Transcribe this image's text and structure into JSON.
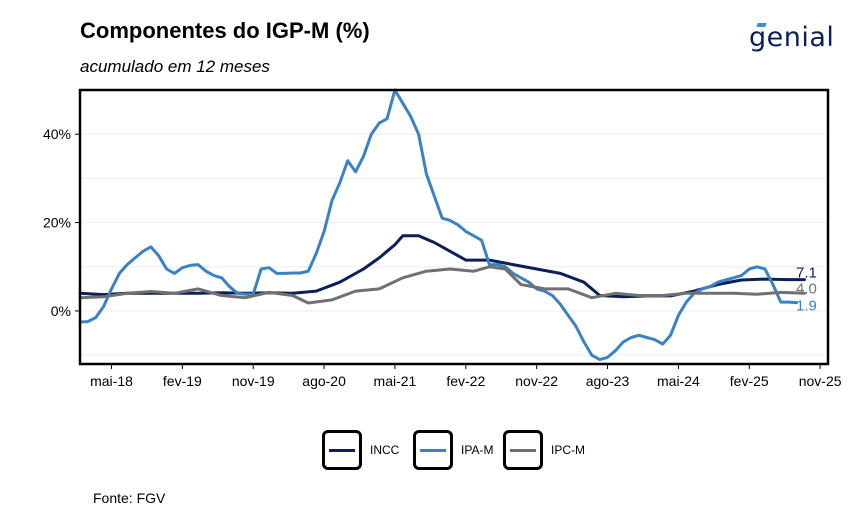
{
  "header": {
    "title": "Componentes do IGP-M (%)",
    "subtitle": "acumulado em 12 meses",
    "logo_text": "genial"
  },
  "footer": {
    "source": "Fonte: FGV"
  },
  "chart_data": {
    "type": "line",
    "title": "Componentes do IGP-M (%)",
    "subtitle": "acumulado em 12 meses",
    "xlabel": "",
    "ylabel": "",
    "ylim": [
      -12,
      50
    ],
    "yticks": [
      0,
      20,
      40
    ],
    "ytick_labels": [
      "0%",
      "20%",
      "40%"
    ],
    "xlim": [
      "2018-01",
      "2025-12"
    ],
    "xtick_dates": [
      "2018-05",
      "2019-02",
      "2019-11",
      "2020-08",
      "2021-05",
      "2022-02",
      "2022-11",
      "2023-08",
      "2024-05",
      "2025-02",
      "2025-11"
    ],
    "xtick_labels": [
      "mai-18",
      "fev-19",
      "nov-19",
      "ago-20",
      "mai-21",
      "fev-22",
      "nov-22",
      "ago-23",
      "mai-24",
      "fev-25",
      "nov-25"
    ],
    "grid": true,
    "legend_position": "bottom",
    "end_labels": [
      {
        "series": "INCC",
        "text": "7.1"
      },
      {
        "series": "IPC-M",
        "text": "4.0"
      },
      {
        "series": "IPA-M",
        "text": "1.9"
      }
    ],
    "series": [
      {
        "name": "INCC",
        "color": "#0b1f5c",
        "points": [
          [
            "2018-01",
            4.0
          ],
          [
            "2018-04",
            3.7
          ],
          [
            "2018-07",
            4.0
          ],
          [
            "2018-10",
            4.0
          ],
          [
            "2019-01",
            4.0
          ],
          [
            "2019-04",
            4.0
          ],
          [
            "2019-07",
            4.1
          ],
          [
            "2019-10",
            4.0
          ],
          [
            "2020-01",
            4.1
          ],
          [
            "2020-04",
            4.0
          ],
          [
            "2020-07",
            4.5
          ],
          [
            "2020-10",
            6.5
          ],
          [
            "2021-01",
            9.5
          ],
          [
            "2021-03",
            12.0
          ],
          [
            "2021-05",
            15.0
          ],
          [
            "2021-06",
            17.0
          ],
          [
            "2021-08",
            17.0
          ],
          [
            "2021-10",
            15.5
          ],
          [
            "2021-12",
            13.5
          ],
          [
            "2022-02",
            11.5
          ],
          [
            "2022-05",
            11.5
          ],
          [
            "2022-08",
            10.5
          ],
          [
            "2022-11",
            9.5
          ],
          [
            "2023-02",
            8.5
          ],
          [
            "2023-05",
            6.5
          ],
          [
            "2023-07",
            3.5
          ],
          [
            "2023-10",
            3.2
          ],
          [
            "2024-01",
            3.4
          ],
          [
            "2024-04",
            3.4
          ],
          [
            "2024-07",
            4.5
          ],
          [
            "2024-10",
            6.0
          ],
          [
            "2025-01",
            7.0
          ],
          [
            "2025-04",
            7.2
          ],
          [
            "2025-07",
            7.1
          ],
          [
            "2025-09",
            7.1
          ]
        ]
      },
      {
        "name": "IPA-M",
        "color": "#3b82c4",
        "points": [
          [
            "2018-01",
            -2.5
          ],
          [
            "2018-02",
            -2.4
          ],
          [
            "2018-03",
            -1.5
          ],
          [
            "2018-04",
            1.0
          ],
          [
            "2018-05",
            5.0
          ],
          [
            "2018-06",
            8.5
          ],
          [
            "2018-07",
            10.5
          ],
          [
            "2018-08",
            12.0
          ],
          [
            "2018-09",
            13.5
          ],
          [
            "2018-10",
            14.5
          ],
          [
            "2018-11",
            12.5
          ],
          [
            "2018-12",
            9.5
          ],
          [
            "2019-01",
            8.5
          ],
          [
            "2019-02",
            9.8
          ],
          [
            "2019-03",
            10.3
          ],
          [
            "2019-04",
            10.5
          ],
          [
            "2019-05",
            9.0
          ],
          [
            "2019-06",
            8.0
          ],
          [
            "2019-07",
            7.5
          ],
          [
            "2019-08",
            5.5
          ],
          [
            "2019-09",
            4.0
          ],
          [
            "2019-10",
            3.8
          ],
          [
            "2019-11",
            3.8
          ],
          [
            "2019-12",
            9.5
          ],
          [
            "2020-01",
            9.8
          ],
          [
            "2020-02",
            8.5
          ],
          [
            "2020-03",
            8.5
          ],
          [
            "2020-04",
            8.6
          ],
          [
            "2020-05",
            8.6
          ],
          [
            "2020-06",
            9.0
          ],
          [
            "2020-07",
            13.0
          ],
          [
            "2020-08",
            18.0
          ],
          [
            "2020-09",
            25.0
          ],
          [
            "2020-10",
            29.0
          ],
          [
            "2020-11",
            34.0
          ],
          [
            "2020-12",
            31.5
          ],
          [
            "2021-01",
            35.0
          ],
          [
            "2021-02",
            40.0
          ],
          [
            "2021-03",
            42.5
          ],
          [
            "2021-04",
            43.5
          ],
          [
            "2021-05",
            50.0
          ],
          [
            "2021-06",
            47.0
          ],
          [
            "2021-07",
            44.0
          ],
          [
            "2021-08",
            40.0
          ],
          [
            "2021-09",
            31.0
          ],
          [
            "2021-10",
            26.0
          ],
          [
            "2021-11",
            21.0
          ],
          [
            "2021-12",
            20.5
          ],
          [
            "2022-01",
            19.5
          ],
          [
            "2022-02",
            18.0
          ],
          [
            "2022-03",
            17.0
          ],
          [
            "2022-04",
            16.0
          ],
          [
            "2022-05",
            10.5
          ],
          [
            "2022-06",
            10.5
          ],
          [
            "2022-07",
            10.0
          ],
          [
            "2022-08",
            8.5
          ],
          [
            "2022-09",
            7.5
          ],
          [
            "2022-10",
            6.5
          ],
          [
            "2022-11",
            5.0
          ],
          [
            "2022-12",
            4.5
          ],
          [
            "2023-01",
            3.5
          ],
          [
            "2023-02",
            1.5
          ],
          [
            "2023-03",
            -1.0
          ],
          [
            "2023-04",
            -3.5
          ],
          [
            "2023-05",
            -7.0
          ],
          [
            "2023-06",
            -10.0
          ],
          [
            "2023-07",
            -11.0
          ],
          [
            "2023-08",
            -10.5
          ],
          [
            "2023-09",
            -9.0
          ],
          [
            "2023-10",
            -7.0
          ],
          [
            "2023-11",
            -6.0
          ],
          [
            "2023-12",
            -5.5
          ],
          [
            "2024-01",
            -6.0
          ],
          [
            "2024-02",
            -6.5
          ],
          [
            "2024-03",
            -7.5
          ],
          [
            "2024-04",
            -5.5
          ],
          [
            "2024-05",
            -1.0
          ],
          [
            "2024-06",
            2.0
          ],
          [
            "2024-07",
            4.0
          ],
          [
            "2024-08",
            5.0
          ],
          [
            "2024-09",
            5.5
          ],
          [
            "2024-10",
            6.5
          ],
          [
            "2024-11",
            7.0
          ],
          [
            "2024-12",
            7.5
          ],
          [
            "2025-01",
            8.0
          ],
          [
            "2025-02",
            9.5
          ],
          [
            "2025-03",
            10.0
          ],
          [
            "2025-04",
            9.5
          ],
          [
            "2025-05",
            6.0
          ],
          [
            "2025-06",
            2.0
          ],
          [
            "2025-07",
            2.0
          ],
          [
            "2025-08",
            1.9
          ]
        ]
      },
      {
        "name": "IPC-M",
        "color": "#707070",
        "points": [
          [
            "2018-01",
            3.0
          ],
          [
            "2018-04",
            3.2
          ],
          [
            "2018-07",
            4.0
          ],
          [
            "2018-10",
            4.4
          ],
          [
            "2019-01",
            4.0
          ],
          [
            "2019-04",
            5.0
          ],
          [
            "2019-07",
            3.5
          ],
          [
            "2019-10",
            3.0
          ],
          [
            "2020-01",
            4.2
          ],
          [
            "2020-04",
            3.5
          ],
          [
            "2020-06",
            1.8
          ],
          [
            "2020-09",
            2.5
          ],
          [
            "2020-12",
            4.5
          ],
          [
            "2021-03",
            5.0
          ],
          [
            "2021-06",
            7.5
          ],
          [
            "2021-09",
            9.0
          ],
          [
            "2021-12",
            9.5
          ],
          [
            "2022-03",
            9.0
          ],
          [
            "2022-05",
            10.0
          ],
          [
            "2022-07",
            9.5
          ],
          [
            "2022-09",
            6.0
          ],
          [
            "2022-12",
            5.0
          ],
          [
            "2023-03",
            5.0
          ],
          [
            "2023-06",
            3.0
          ],
          [
            "2023-09",
            4.0
          ],
          [
            "2023-12",
            3.5
          ],
          [
            "2024-03",
            3.5
          ],
          [
            "2024-06",
            4.0
          ],
          [
            "2024-09",
            4.0
          ],
          [
            "2024-12",
            4.0
          ],
          [
            "2025-03",
            3.8
          ],
          [
            "2025-06",
            4.2
          ],
          [
            "2025-09",
            4.0
          ]
        ]
      }
    ]
  }
}
